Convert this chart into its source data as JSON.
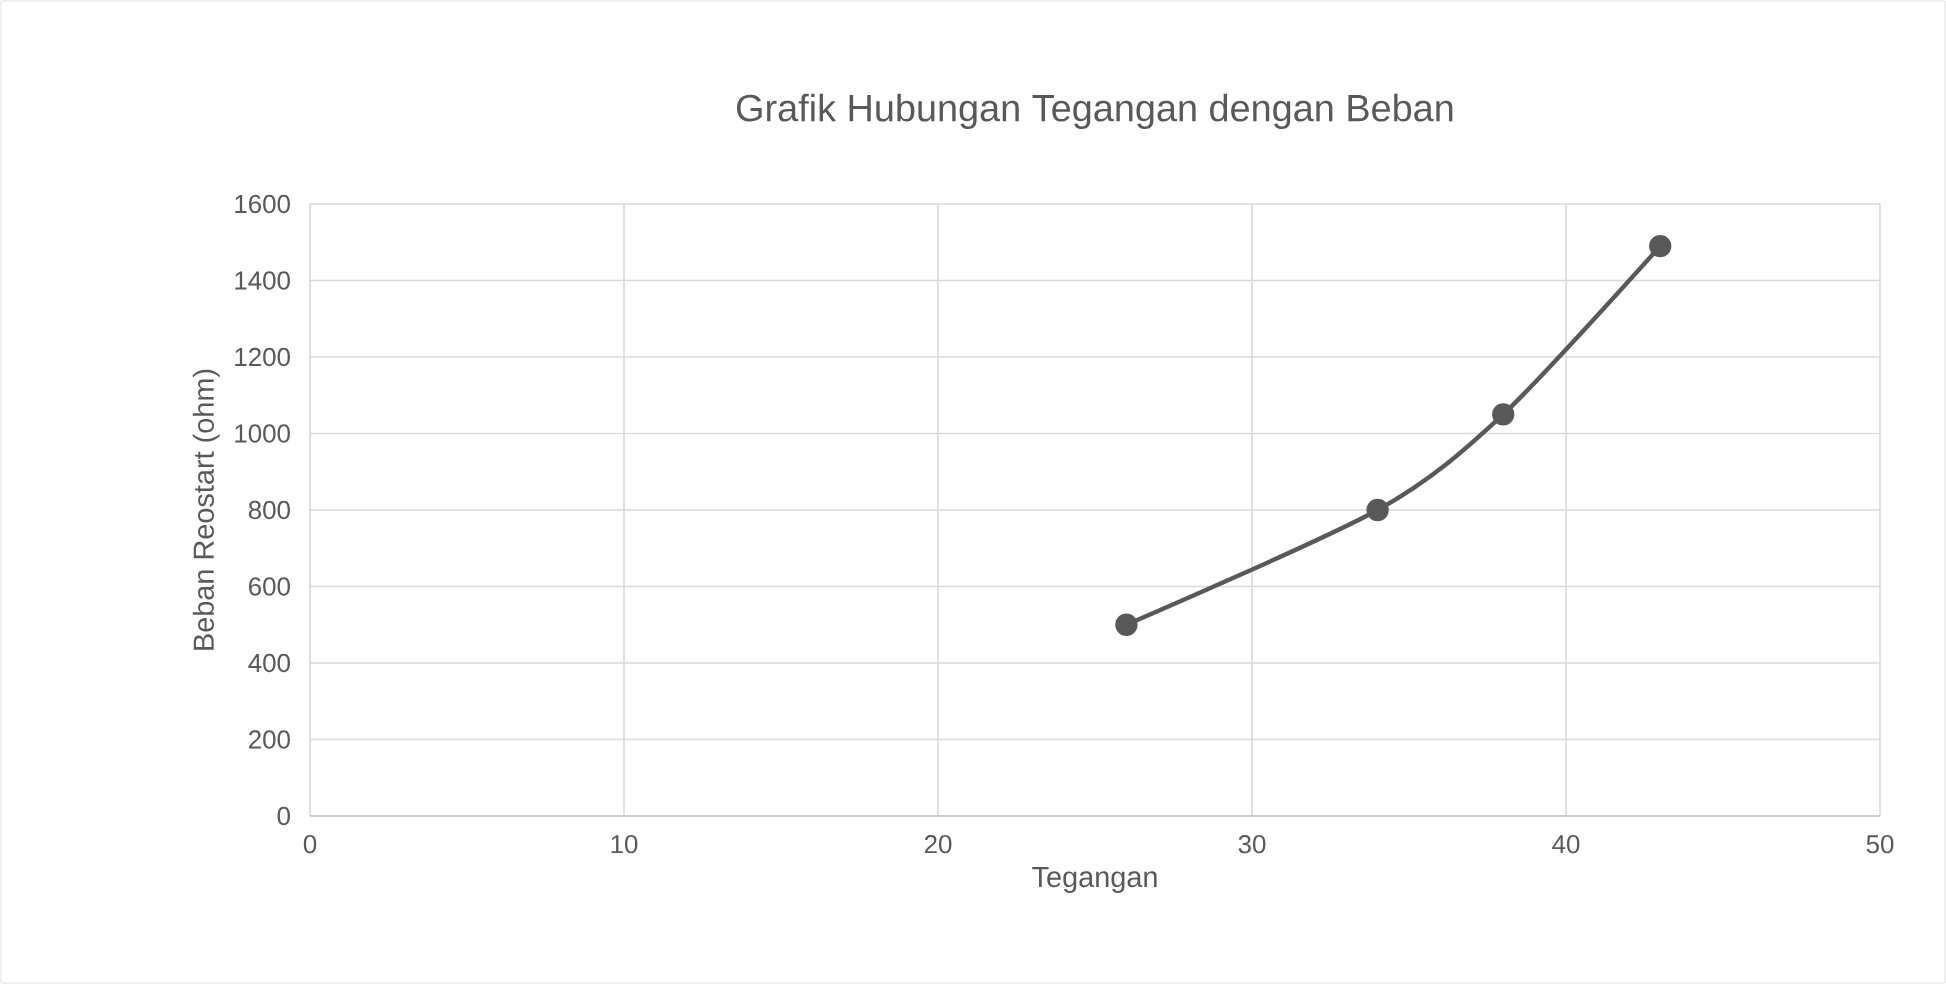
{
  "chart_data": {
    "type": "line",
    "title": "Grafik Hubungan Tegangan dengan Beban",
    "xlabel": "Tegangan",
    "ylabel": "Beban Reostart (ohm)",
    "x": [
      26,
      34,
      38,
      43
    ],
    "series": [
      {
        "color": "#595959",
        "values": [
          500,
          800,
          1050,
          1490
        ]
      }
    ],
    "xlim": [
      0,
      50
    ],
    "xticks": [
      0,
      10,
      20,
      30,
      40,
      50
    ],
    "ylim": [
      0,
      1600
    ],
    "yticks": [
      0,
      200,
      400,
      600,
      800,
      1000,
      1200,
      1400,
      1600
    ],
    "grid": true,
    "marker": "circle",
    "line_style": "solid"
  }
}
